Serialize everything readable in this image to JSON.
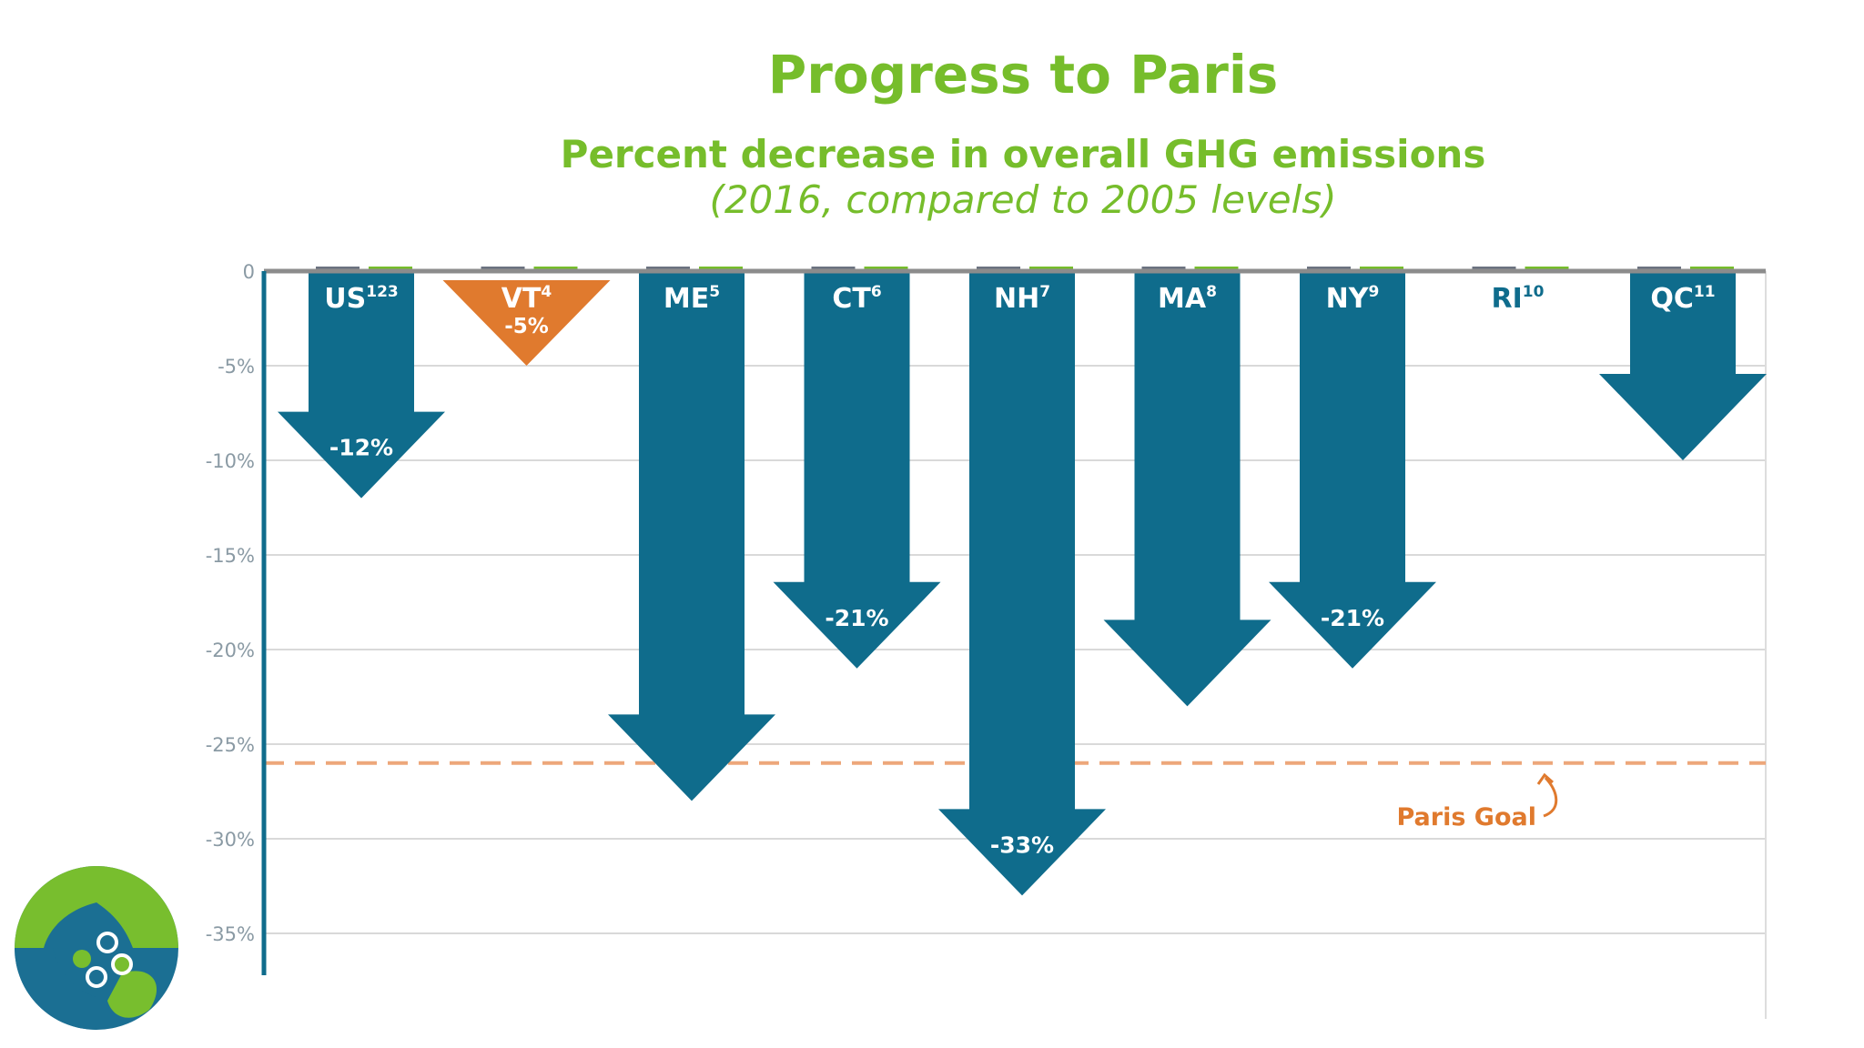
{
  "header": {
    "title": "Progress to Paris",
    "subtitle": "Percent decrease in overall GHG emissions",
    "subtitle_note": "(2016, compared to 2005 levels)"
  },
  "colors": {
    "accent_green": "#76bd2b",
    "arrow_blue": "#0f6c8c",
    "arrow_orange": "#e07a2e",
    "paris_goal": "#eda77a",
    "gridline": "#d9d9d9",
    "axis": "#0f6c8c"
  },
  "logo": {
    "icon": "organization-logo-icon"
  },
  "chart_data": {
    "type": "bar",
    "title": "Progress to Paris",
    "subtitle": "Percent decrease in overall GHG emissions (2016, compared to 2005 levels)",
    "ylim": [
      -37,
      0
    ],
    "yticks": [
      {
        "value": 0,
        "label": "0"
      },
      {
        "value": -5,
        "label": "-5%"
      },
      {
        "value": -10,
        "label": "-10%"
      },
      {
        "value": -15,
        "label": "-15%"
      },
      {
        "value": -20,
        "label": "-20%"
      },
      {
        "value": -25,
        "label": "-25%"
      },
      {
        "value": -30,
        "label": "-30%"
      },
      {
        "value": -35,
        "label": "-35%"
      }
    ],
    "grid": true,
    "bars": [
      {
        "category": "US",
        "footnote": "123",
        "value": -12,
        "label": "-12%",
        "color": "#0f6c8c"
      },
      {
        "category": "VT",
        "footnote": "4",
        "value": -5,
        "label": "-5%",
        "color": "#e07a2e"
      },
      {
        "category": "ME",
        "footnote": "5",
        "value": -28,
        "label": "",
        "color": "#0f6c8c"
      },
      {
        "category": "CT",
        "footnote": "6",
        "value": -21,
        "label": "-21%",
        "color": "#0f6c8c"
      },
      {
        "category": "NH",
        "footnote": "7",
        "value": -33,
        "label": "-33%",
        "color": "#0f6c8c"
      },
      {
        "category": "MA",
        "footnote": "8",
        "value": -23,
        "label": "",
        "color": "#0f6c8c"
      },
      {
        "category": "NY",
        "footnote": "9",
        "value": -21,
        "label": "-21%",
        "color": "#0f6c8c"
      },
      {
        "category": "RI",
        "footnote": "10",
        "value": 0,
        "label": "",
        "color": "#0f6c8c"
      },
      {
        "category": "QC",
        "footnote": "11",
        "value": -10,
        "label": "",
        "color": "#0f6c8c"
      }
    ],
    "reference_line": {
      "value": -26,
      "label": "Paris Goal",
      "style": "dashed"
    }
  }
}
